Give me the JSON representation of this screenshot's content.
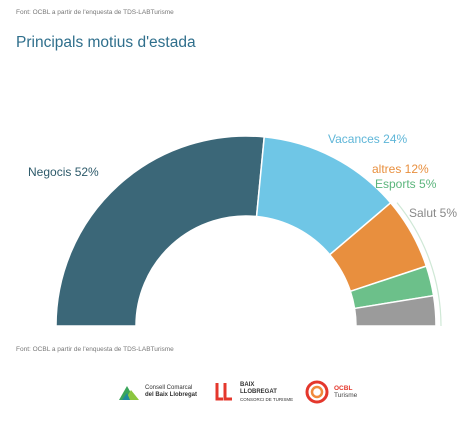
{
  "source_top": "Font: OCBL a partir de l'enquesta de TDS-LABTurisme",
  "title": "Principals motius d'estada",
  "source_bottom": "Font: OCBL a partir de l'enquesta de TDS-LABTurisme",
  "chart_data": {
    "type": "pie",
    "title": "Principals motius d'estada",
    "series": [
      {
        "name": "Negocis",
        "value": 52,
        "label": "Negocis 52%",
        "color": "#3b6778"
      },
      {
        "name": "Vacances",
        "value": 24,
        "label": "Vacances 24%",
        "color": "#6fc6e6"
      },
      {
        "name": "altres",
        "value": 12,
        "label": "altres 12%",
        "color": "#e88f3e"
      },
      {
        "name": "Esports",
        "value": 5,
        "label": "Esports 5%",
        "color": "#6cc08a"
      },
      {
        "name": "Salut",
        "value": 5,
        "label": "Salut 5%",
        "color": "#9b9b9b"
      }
    ],
    "label_colors": [
      "#2d5a6a",
      "#5fb6d8",
      "#e88f3e",
      "#5bb57c",
      "#888888"
    ]
  },
  "logos": {
    "ccbl": {
      "line1": "Consell Comarcal",
      "line2": "del Baix Llobregat",
      "icon": "ccbl-mountain-logo"
    },
    "bll": {
      "line1": "BAIX",
      "line2": "LLOBREGAT",
      "line3": "CONSORCI DE TURISME",
      "icon": "ll-logo"
    },
    "ocbl": {
      "line1": "OCBL",
      "line2": "Turisme",
      "icon": "ocbl-swirl-logo"
    }
  }
}
